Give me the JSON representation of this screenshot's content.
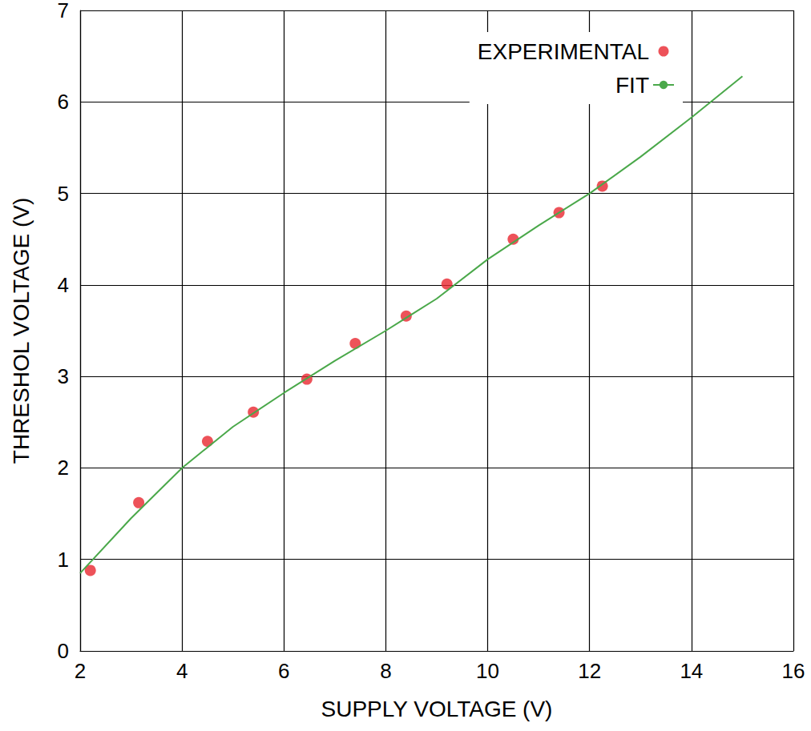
{
  "chart_data": {
    "type": "scatter",
    "xlabel": "SUPPLY VOLTAGE (V)",
    "ylabel": "THRESHOL VOLTAGE (V)",
    "xlim": [
      2,
      16
    ],
    "xticks": [
      2,
      4,
      6,
      8,
      10,
      12,
      14,
      16
    ],
    "ylim": [
      0,
      7
    ],
    "yticks": [
      0,
      1,
      2,
      3,
      4,
      5,
      6,
      7
    ],
    "grid": true,
    "legend": "upper right",
    "series": [
      {
        "name": "EXPERIMENTAL",
        "type": "scatter",
        "color": "#e8272f",
        "marker": "circle",
        "x": [
          2.2,
          3.15,
          4.5,
          5.4,
          6.45,
          7.4,
          8.4,
          9.2,
          10.5,
          11.4,
          12.25
        ],
        "values": [
          0.88,
          1.62,
          2.29,
          2.61,
          2.97,
          3.36,
          3.66,
          4.01,
          4.5,
          4.79,
          5.08
        ]
      },
      {
        "name": "FIT",
        "type": "line",
        "color": "#4aa84a",
        "line_style": "solid",
        "x": [
          2,
          3,
          4,
          5,
          6,
          7,
          8,
          9,
          10,
          11,
          12,
          13,
          14,
          15
        ],
        "values": [
          0.85,
          1.45,
          2.0,
          2.45,
          2.82,
          3.17,
          3.5,
          3.85,
          4.28,
          4.65,
          5.0,
          5.4,
          5.83,
          6.28
        ]
      }
    ]
  }
}
